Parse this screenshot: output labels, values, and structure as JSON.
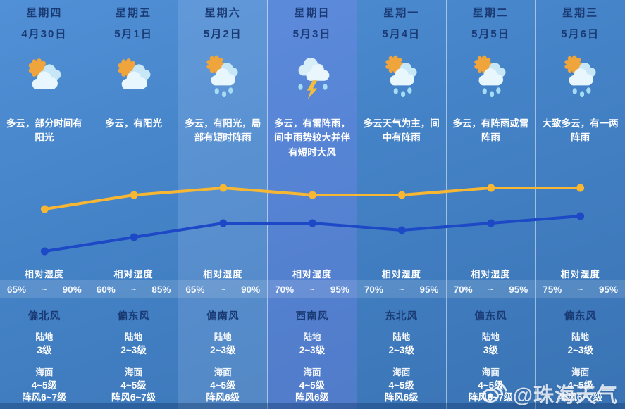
{
  "labels": {
    "humidity": "相对湿度",
    "land": "陆地",
    "sea": "海面",
    "tilde": "~"
  },
  "colors": {
    "high_line": "#f8b733",
    "low_line": "#1d49c7",
    "navy_text": "#1a3a74",
    "white_text": "#ffffff",
    "background_top": "#5190d6",
    "background_bottom": "#3973b4"
  },
  "days": [
    {
      "weekday": "星期四",
      "date": "4月30日",
      "icon": "sun-cloud-icon",
      "desc": "多云，部分时间有阳光",
      "hum_min": "65%",
      "hum_max": "90%",
      "wind_dir": "偏北风",
      "land_level": "3级",
      "sea_level": "4~5级",
      "gust": "阵风6~7级",
      "tint": "none"
    },
    {
      "weekday": "星期五",
      "date": "5月1日",
      "icon": "sun-cloud-icon",
      "desc": "多云，有阳光",
      "hum_min": "60%",
      "hum_max": "85%",
      "wind_dir": "偏东风",
      "land_level": "2~3级",
      "sea_level": "4~5级",
      "gust": "阵风6~7级",
      "tint": "none"
    },
    {
      "weekday": "星期六",
      "date": "5月2日",
      "icon": "sun-cloud-rain-icon",
      "desc": "多云，有阳光，局部有短时阵雨",
      "hum_min": "65%",
      "hum_max": "90%",
      "wind_dir": "偏南风",
      "land_level": "2~3级",
      "sea_level": "4~5级",
      "gust": "阵风6级",
      "tint": "light"
    },
    {
      "weekday": "星期日",
      "date": "5月3日",
      "icon": "thunder-rain-icon",
      "desc": "多云，有雷阵雨，间中雨势较大并伴有短时大风",
      "hum_min": "70%",
      "hum_max": "95%",
      "wind_dir": "西南风",
      "land_level": "2~3级",
      "sea_level": "4~5级",
      "gust": "阵风6级",
      "tint": "purple"
    },
    {
      "weekday": "星期一",
      "date": "5月4日",
      "icon": "sun-cloud-rain-icon",
      "desc": "多云天气为主，间中有阵雨",
      "hum_min": "70%",
      "hum_max": "95%",
      "wind_dir": "东北风",
      "land_level": "2~3级",
      "sea_level": "4~5级",
      "gust": "阵风6级",
      "tint": "none"
    },
    {
      "weekday": "星期二",
      "date": "5月5日",
      "icon": "sun-cloud-rain-icon",
      "desc": "多云，有阵雨或雷阵雨",
      "hum_min": "70%",
      "hum_max": "95%",
      "wind_dir": "偏东风",
      "land_level": "3级",
      "sea_level": "4~5级",
      "gust": "阵风6~7级",
      "tint": "none"
    },
    {
      "weekday": "星期三",
      "date": "5月6日",
      "icon": "sun-cloud-rain-icon",
      "desc": "大致多云，有一两阵雨",
      "hum_min": "75%",
      "hum_max": "95%",
      "wind_dir": "偏东风",
      "land_level": "2~3级",
      "sea_level": "4~5级",
      "gust": "阵风6~7级",
      "tint": "none"
    }
  ],
  "chart_data": {
    "type": "line",
    "x": [
      "4月30日",
      "5月1日",
      "5月2日",
      "5月3日",
      "5月4日",
      "5月5日",
      "5月6日"
    ],
    "series": [
      {
        "name": "high",
        "color": "#f8b733",
        "values": [
          25,
          27,
          28,
          27,
          27,
          28,
          28
        ]
      },
      {
        "name": "low",
        "color": "#1d49c7",
        "values": [
          19,
          21,
          23,
          23,
          22,
          23,
          24
        ]
      }
    ],
    "unit": "℃",
    "grid": "vertical-column-separators",
    "legend": "none",
    "point_labels": "value+unit above each point"
  },
  "watermark": {
    "handle": "@珠海天气",
    "icon": "weibo-icon"
  }
}
